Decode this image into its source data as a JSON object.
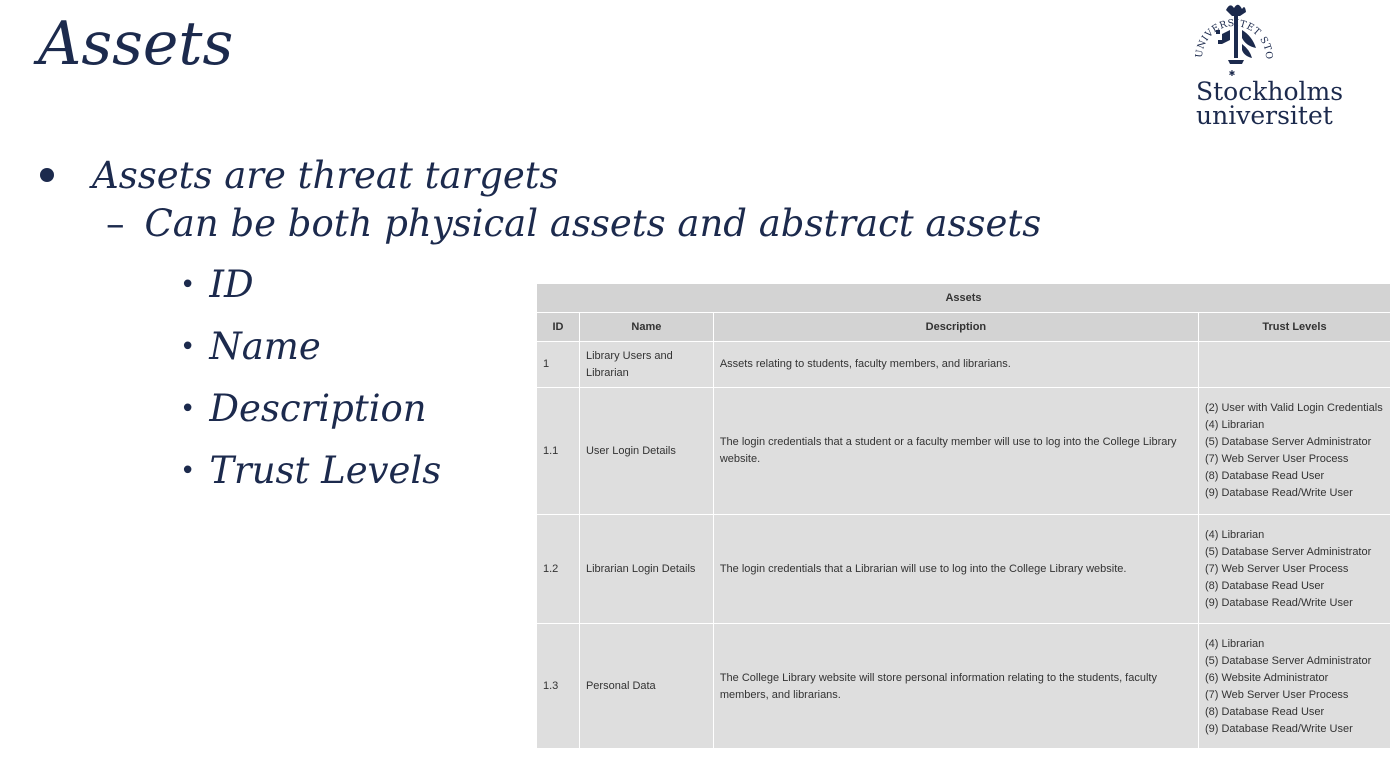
{
  "slide": {
    "title": "Assets",
    "bullet_1": "Assets are threat targets",
    "bullet_2": "Can be both physical assets and abstract assets",
    "sub_bullets": [
      "ID",
      "Name",
      "Description",
      "Trust Levels"
    ]
  },
  "logo": {
    "line_1": "Stockholms",
    "line_2": "universitet",
    "ring_text": "UNIVERSITET STOCKHOLMS"
  },
  "table": {
    "caption": "Assets",
    "headers": [
      "ID",
      "Name",
      "Description",
      "Trust Levels"
    ],
    "rows": [
      {
        "id": "1",
        "name": "Library Users and Librarian",
        "description": "Assets relating to students, faculty members, and librarians.",
        "trust_levels": []
      },
      {
        "id": "1.1",
        "name": "User Login Details",
        "description": "The login credentials that a student or a faculty member will use to log into the College Library website.",
        "trust_levels": [
          "(2) User with Valid Login Credentials",
          "(4) Librarian",
          "(5) Database Server Administrator",
          "(7) Web Server User Process",
          "(8) Database Read User",
          "(9) Database Read/Write User"
        ]
      },
      {
        "id": "1.2",
        "name": "Librarian Login Details",
        "description": "The login credentials that a Librarian will use to log into the College Library website.",
        "trust_levels": [
          "(4) Librarian",
          "(5) Database Server Administrator",
          "(7) Web Server User Process",
          "(8) Database Read User",
          "(9) Database Read/Write User"
        ]
      },
      {
        "id": "1.3",
        "name": "Personal Data",
        "description": "The College Library website will store personal information relating to the students, faculty members, and librarians.",
        "trust_levels": [
          "(4) Librarian",
          "(5) Database Server Administrator",
          "(6) Website Administrator",
          "(7) Web Server User Process",
          "(8) Database Read User",
          "(9) Database Read/Write User"
        ]
      }
    ]
  },
  "colors": {
    "text_navy": "#1c2a4d",
    "table_bg": "#dedede",
    "table_header_bg": "#d3d3d3",
    "table_text": "#333333"
  }
}
